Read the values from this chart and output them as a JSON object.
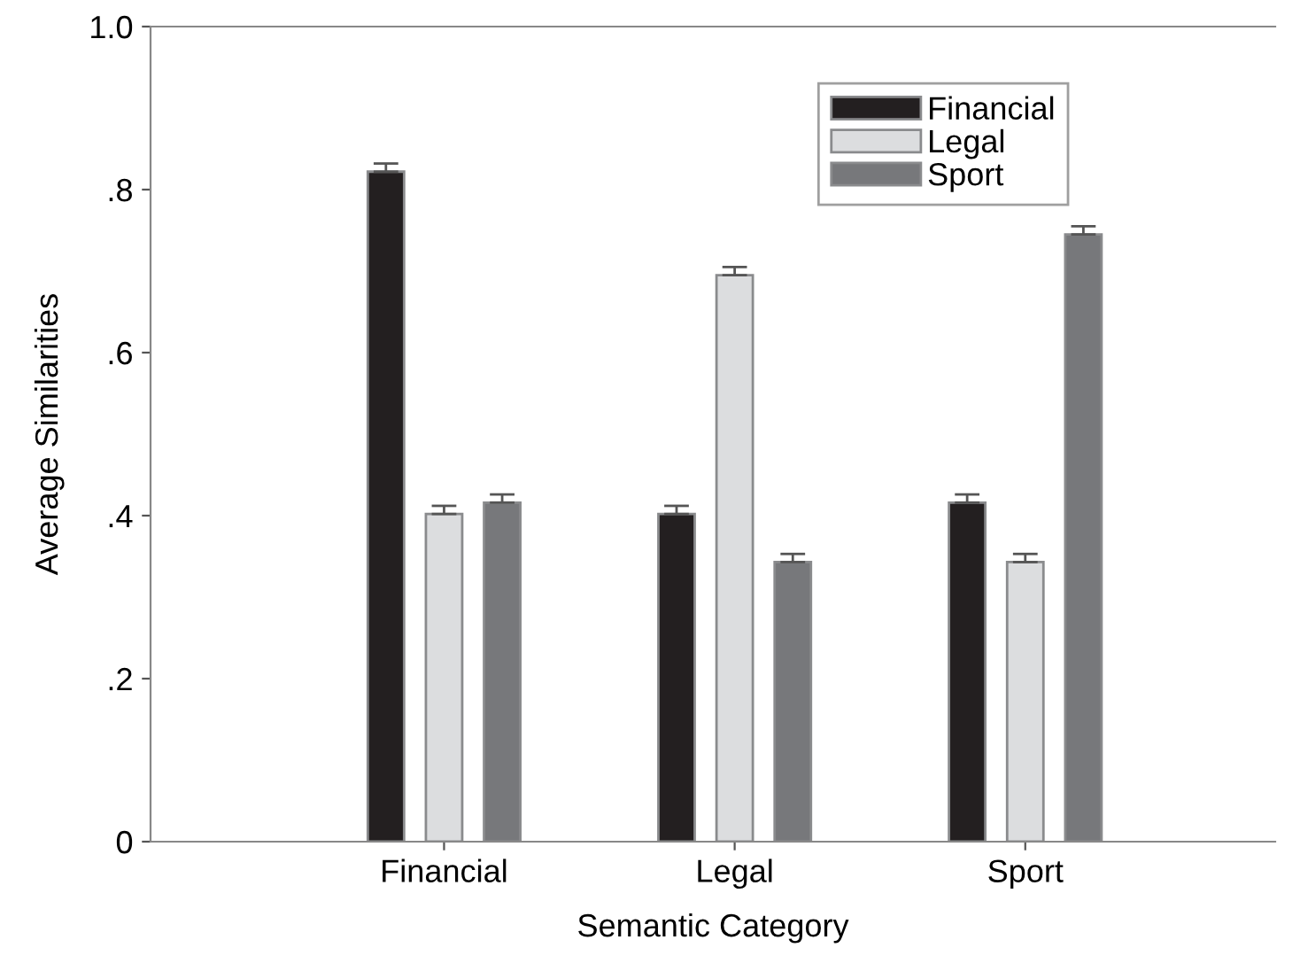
{
  "chart_data": {
    "type": "bar",
    "xlabel": "Semantic Category",
    "ylabel": "Average Similarities",
    "categories": [
      "Financial",
      "Legal",
      "Sport"
    ],
    "series": [
      {
        "name": "Financial",
        "color": "#231f20",
        "values": [
          0.822,
          0.402,
          0.416
        ],
        "errors": [
          0.01,
          0.01,
          0.01
        ]
      },
      {
        "name": "Legal",
        "color": "#dcdddf",
        "values": [
          0.402,
          0.695,
          0.343
        ],
        "errors": [
          0.01,
          0.01,
          0.01
        ]
      },
      {
        "name": "Sport",
        "color": "#77787b",
        "values": [
          0.416,
          0.343,
          0.745
        ],
        "errors": [
          0.01,
          0.01,
          0.01
        ]
      }
    ],
    "ylim": [
      0,
      1.0
    ],
    "yticks": [
      {
        "value": 0,
        "label": "0"
      },
      {
        "value": 0.2,
        "label": ".2"
      },
      {
        "value": 0.4,
        "label": ".4"
      },
      {
        "value": 0.6,
        "label": ".6"
      },
      {
        "value": 0.8,
        "label": ".8"
      },
      {
        "value": 1.0,
        "label": "1.0"
      }
    ],
    "grid": false,
    "legend": "top right"
  }
}
